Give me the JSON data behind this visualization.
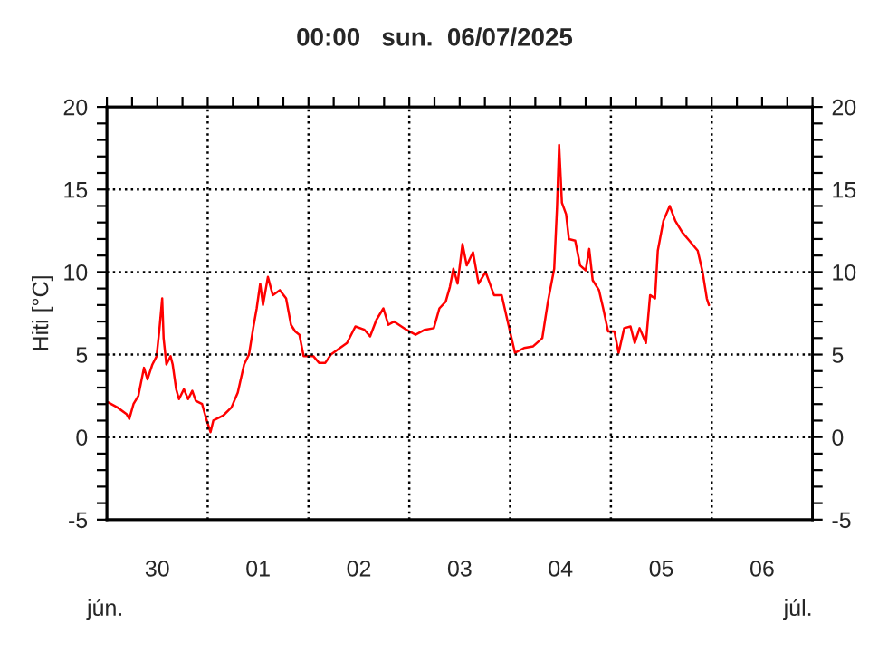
{
  "chart_data": {
    "type": "line",
    "title": "00:00   sun.  06/07/2025",
    "ylabel": "Hiti [°C]",
    "annotations": [
      "jún.",
      "júl."
    ],
    "series": [
      {
        "color": "#ff0000",
        "x": [
          "2025-06-30T00:20",
          "2025-06-30T02:30",
          "2025-06-30T04:40",
          "2025-06-30T05:20",
          "2025-06-30T06:20",
          "2025-06-30T07:30",
          "2025-06-30T08:50",
          "2025-06-30T09:40",
          "2025-06-30T10:50",
          "2025-06-30T11:50",
          "2025-06-30T12:30",
          "2025-06-30T13:10",
          "2025-06-30T13:30",
          "2025-06-30T14:10",
          "2025-06-30T15:10",
          "2025-06-30T15:40",
          "2025-06-30T16:30",
          "2025-06-30T17:10",
          "2025-06-30T18:20",
          "2025-06-30T19:20",
          "2025-06-30T20:20",
          "2025-06-30T21:10",
          "2025-06-30T22:40",
          "2025-06-30T23:40",
          "2025-07-01T00:40",
          "2025-07-01T01:20",
          "2025-07-01T03:40",
          "2025-07-01T05:40",
          "2025-07-01T07:10",
          "2025-07-01T08:40",
          "2025-07-01T09:50",
          "2025-07-01T10:50",
          "2025-07-01T11:40",
          "2025-07-01T12:30",
          "2025-07-01T13:10",
          "2025-07-01T14:20",
          "2025-07-01T15:30",
          "2025-07-01T17:10",
          "2025-07-01T18:40",
          "2025-07-01T19:50",
          "2025-07-01T20:50",
          "2025-07-01T21:50",
          "2025-07-01T22:50",
          "2025-07-02T01:10",
          "2025-07-02T02:30",
          "2025-07-02T04:00",
          "2025-07-02T05:20",
          "2025-07-02T07:30",
          "2025-07-02T09:10",
          "2025-07-02T11:10",
          "2025-07-02T13:20",
          "2025-07-02T14:40",
          "2025-07-02T16:10",
          "2025-07-02T17:50",
          "2025-07-02T19:00",
          "2025-07-02T20:20",
          "2025-07-02T23:20",
          "2025-07-03T01:30",
          "2025-07-03T03:40",
          "2025-07-03T05:50",
          "2025-07-03T07:10",
          "2025-07-03T08:40",
          "2025-07-03T09:40",
          "2025-07-03T10:30",
          "2025-07-03T11:30",
          "2025-07-03T12:40",
          "2025-07-03T13:40",
          "2025-07-03T15:10",
          "2025-07-03T16:30",
          "2025-07-03T18:10",
          "2025-07-03T20:10",
          "2025-07-03T22:00",
          "2025-07-03T23:20",
          "2025-07-04T00:20",
          "2025-07-04T01:10",
          "2025-07-04T03:20",
          "2025-07-04T05:30",
          "2025-07-04T07:40",
          "2025-07-04T09:00",
          "2025-07-04T10:30",
          "2025-07-04T11:10",
          "2025-07-04T11:40",
          "2025-07-04T12:20",
          "2025-07-04T13:20",
          "2025-07-04T14:00",
          "2025-07-04T15:30",
          "2025-07-04T16:40",
          "2025-07-04T18:00",
          "2025-07-04T18:50",
          "2025-07-04T19:40",
          "2025-07-04T21:10",
          "2025-07-04T22:10",
          "2025-07-04T23:20",
          "2025-07-05T00:50",
          "2025-07-05T01:50",
          "2025-07-05T03:10",
          "2025-07-05T04:40",
          "2025-07-05T05:40",
          "2025-07-05T06:50",
          "2025-07-05T08:20",
          "2025-07-05T09:20",
          "2025-07-05T10:30",
          "2025-07-05T11:10",
          "2025-07-05T12:30",
          "2025-07-05T14:00",
          "2025-07-05T15:20",
          "2025-07-05T17:00",
          "2025-07-05T18:40",
          "2025-07-05T20:40",
          "2025-07-05T21:50",
          "2025-07-05T22:50",
          "2025-07-05T23:20"
        ],
        "values": [
          2.1,
          1.8,
          1.4,
          1.1,
          2.0,
          2.5,
          4.2,
          3.5,
          4.4,
          4.9,
          6.5,
          8.4,
          6.0,
          4.4,
          4.9,
          4.4,
          2.9,
          2.3,
          2.9,
          2.3,
          2.8,
          2.2,
          2.0,
          1.1,
          0.3,
          1.0,
          1.3,
          1.8,
          2.7,
          4.4,
          5.0,
          6.6,
          7.8,
          9.3,
          8.0,
          9.7,
          8.6,
          8.9,
          8.4,
          6.8,
          6.4,
          6.2,
          4.9,
          4.9,
          4.5,
          4.5,
          5.0,
          5.4,
          5.7,
          6.7,
          6.5,
          6.1,
          7.1,
          7.8,
          6.8,
          7.0,
          6.5,
          6.2,
          6.5,
          6.6,
          7.8,
          8.2,
          9.1,
          10.2,
          9.3,
          11.7,
          10.4,
          11.2,
          9.3,
          10.0,
          8.6,
          8.6,
          7.1,
          6.0,
          5.1,
          5.4,
          5.5,
          6.0,
          8.2,
          10.2,
          13.9,
          17.7,
          14.2,
          13.5,
          12.0,
          11.9,
          10.4,
          10.1,
          11.4,
          9.5,
          8.9,
          7.8,
          6.4,
          6.4,
          5.1,
          6.6,
          6.7,
          5.7,
          6.6,
          5.7,
          8.6,
          8.4,
          11.3,
          13.1,
          14.0,
          13.1,
          12.4,
          11.9,
          11.3,
          10.0,
          8.4,
          8.0
        ]
      }
    ],
    "xlim": [
      "2025-06-30T00:00",
      "2025-07-07T00:00"
    ],
    "xticks": [
      {
        "value": "2025-06-30T00:00",
        "label": null
      },
      {
        "value": "2025-06-30T06:00",
        "label": null
      },
      {
        "value": "2025-06-30T12:00",
        "label": "30"
      },
      {
        "value": "2025-06-30T18:00",
        "label": null
      },
      {
        "value": "2025-07-01T00:00",
        "label": null
      },
      {
        "value": "2025-07-01T06:00",
        "label": null
      },
      {
        "value": "2025-07-01T12:00",
        "label": "01"
      },
      {
        "value": "2025-07-01T18:00",
        "label": null
      },
      {
        "value": "2025-07-02T00:00",
        "label": null
      },
      {
        "value": "2025-07-02T06:00",
        "label": null
      },
      {
        "value": "2025-07-02T12:00",
        "label": "02"
      },
      {
        "value": "2025-07-02T18:00",
        "label": null
      },
      {
        "value": "2025-07-03T00:00",
        "label": null
      },
      {
        "value": "2025-07-03T06:00",
        "label": null
      },
      {
        "value": "2025-07-03T12:00",
        "label": "03"
      },
      {
        "value": "2025-07-03T18:00",
        "label": null
      },
      {
        "value": "2025-07-04T00:00",
        "label": null
      },
      {
        "value": "2025-07-04T06:00",
        "label": null
      },
      {
        "value": "2025-07-04T12:00",
        "label": "04"
      },
      {
        "value": "2025-07-04T18:00",
        "label": null
      },
      {
        "value": "2025-07-05T00:00",
        "label": null
      },
      {
        "value": "2025-07-05T06:00",
        "label": null
      },
      {
        "value": "2025-07-05T12:00",
        "label": "05"
      },
      {
        "value": "2025-07-05T18:00",
        "label": null
      },
      {
        "value": "2025-07-06T00:00",
        "label": null
      },
      {
        "value": "2025-07-06T06:00",
        "label": null
      },
      {
        "value": "2025-07-06T12:00",
        "label": "06"
      },
      {
        "value": "2025-07-06T18:00",
        "label": null
      },
      {
        "value": "2025-07-07T00:00",
        "label": null
      }
    ],
    "ylim": [
      -5,
      20
    ],
    "yticks": [
      -5,
      {
        "value": -4,
        "label": null
      },
      {
        "value": -3,
        "label": null
      },
      {
        "value": -2,
        "label": null
      },
      {
        "value": -1,
        "label": null
      },
      0,
      {
        "value": 1,
        "label": null
      },
      {
        "value": 2,
        "label": null
      },
      {
        "value": 3,
        "label": null
      },
      {
        "value": 4,
        "label": null
      },
      5,
      {
        "value": 6,
        "label": null
      },
      {
        "value": 7,
        "label": null
      },
      {
        "value": 8,
        "label": null
      },
      {
        "value": 9,
        "label": null
      },
      10,
      {
        "value": 11,
        "label": null
      },
      {
        "value": 12,
        "label": null
      },
      {
        "value": 13,
        "label": null
      },
      {
        "value": 14,
        "label": null
      },
      15,
      {
        "value": 16,
        "label": null
      },
      {
        "value": 17,
        "label": null
      },
      {
        "value": 18,
        "label": null
      },
      {
        "value": 19,
        "label": null
      },
      20
    ],
    "y2lim": [
      -5,
      20
    ],
    "y2ticks": [
      -5,
      {
        "value": -4,
        "label": null
      },
      {
        "value": -3,
        "label": null
      },
      {
        "value": -2,
        "label": null
      },
      {
        "value": -1,
        "label": null
      },
      0,
      {
        "value": 1,
        "label": null
      },
      {
        "value": 2,
        "label": null
      },
      {
        "value": 3,
        "label": null
      },
      {
        "value": 4,
        "label": null
      },
      5,
      {
        "value": 6,
        "label": null
      },
      {
        "value": 7,
        "label": null
      },
      {
        "value": 8,
        "label": null
      },
      {
        "value": 9,
        "label": null
      },
      10,
      {
        "value": 11,
        "label": null
      },
      {
        "value": 12,
        "label": null
      },
      {
        "value": 13,
        "label": null
      },
      {
        "value": 14,
        "label": null
      },
      15,
      {
        "value": 16,
        "label": null
      },
      {
        "value": 17,
        "label": null
      },
      {
        "value": 18,
        "label": null
      },
      {
        "value": 19,
        "label": null
      },
      20
    ],
    "grid": "y",
    "ref_lines": [
      {
        "axis": "x",
        "value": "2025-07-01T00:00",
        "line_style": "dotted",
        "color": "#000000"
      },
      {
        "axis": "x",
        "value": "2025-07-02T00:00",
        "line_style": "dotted",
        "color": "#000000"
      },
      {
        "axis": "x",
        "value": "2025-07-03T00:00",
        "line_style": "dotted",
        "color": "#000000"
      },
      {
        "axis": "x",
        "value": "2025-07-04T00:00",
        "line_style": "dotted",
        "color": "#000000"
      },
      {
        "axis": "x",
        "value": "2025-07-05T00:00",
        "line_style": "dotted",
        "color": "#000000"
      },
      {
        "axis": "x",
        "value": "2025-07-06T00:00",
        "line_style": "dotted",
        "color": "#000000"
      }
    ],
    "legend": false
  }
}
